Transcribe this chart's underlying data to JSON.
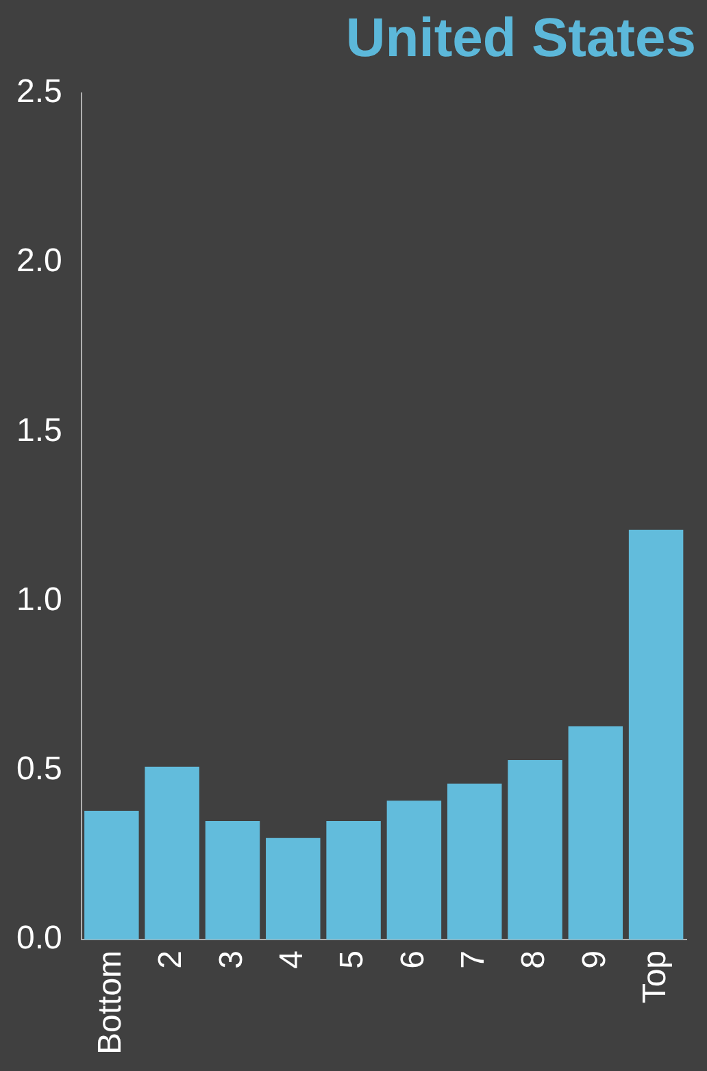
{
  "chart_data": {
    "type": "bar",
    "title": "United States",
    "categories": [
      "Bottom",
      "2",
      "3",
      "4",
      "5",
      "6",
      "7",
      "8",
      "9",
      "Top"
    ],
    "values": [
      0.38,
      0.51,
      0.35,
      0.3,
      0.35,
      0.41,
      0.46,
      0.53,
      0.63,
      1.21
    ],
    "color": "#62bcdc",
    "ylim": [
      0,
      2.5
    ],
    "yticks": [
      {
        "value": 0,
        "label": "0.0"
      },
      {
        "value": 0.5,
        "label": "0.5"
      },
      {
        "value": 1,
        "label": "1.0"
      },
      {
        "value": 1.5,
        "label": "1.5"
      },
      {
        "value": 2,
        "label": "2.0"
      },
      {
        "value": 2.5,
        "label": "2.5"
      }
    ],
    "grid": false,
    "legend": false
  }
}
